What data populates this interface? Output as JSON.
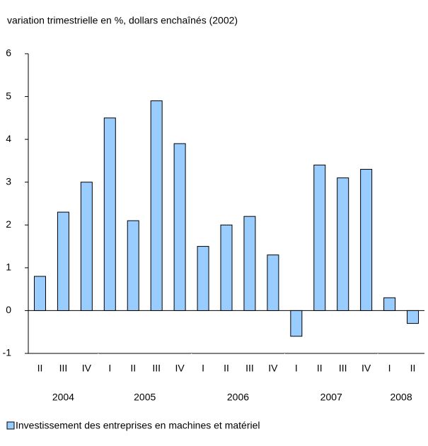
{
  "chart_data": {
    "type": "bar",
    "title": "variation trimestrielle en %, dollars enchaînés (2002)",
    "groups": [
      {
        "name": "2004",
        "categories": [
          "II",
          "III",
          "IV"
        ]
      },
      {
        "name": "2005",
        "categories": [
          "I",
          "II",
          "III",
          "IV"
        ]
      },
      {
        "name": "2006",
        "categories": [
          "I",
          "II",
          "III",
          "IV"
        ]
      },
      {
        "name": "2007",
        "categories": [
          "I",
          "II",
          "III",
          "IV"
        ]
      },
      {
        "name": "2008",
        "categories": [
          "I",
          "II"
        ]
      }
    ],
    "series": [
      {
        "name": "Investissement des entreprises en machines et matériel",
        "color": "#99ccff",
        "values": [
          0.8,
          2.3,
          3.0,
          4.5,
          2.1,
          4.9,
          3.9,
          1.5,
          2.0,
          2.2,
          1.3,
          -0.6,
          3.4,
          3.1,
          3.3,
          0.3,
          -0.3
        ]
      }
    ],
    "ylim": [
      -1,
      6
    ],
    "yticks": [
      -1,
      0,
      1,
      2,
      3,
      4,
      5,
      6
    ],
    "legend": "bottom"
  }
}
